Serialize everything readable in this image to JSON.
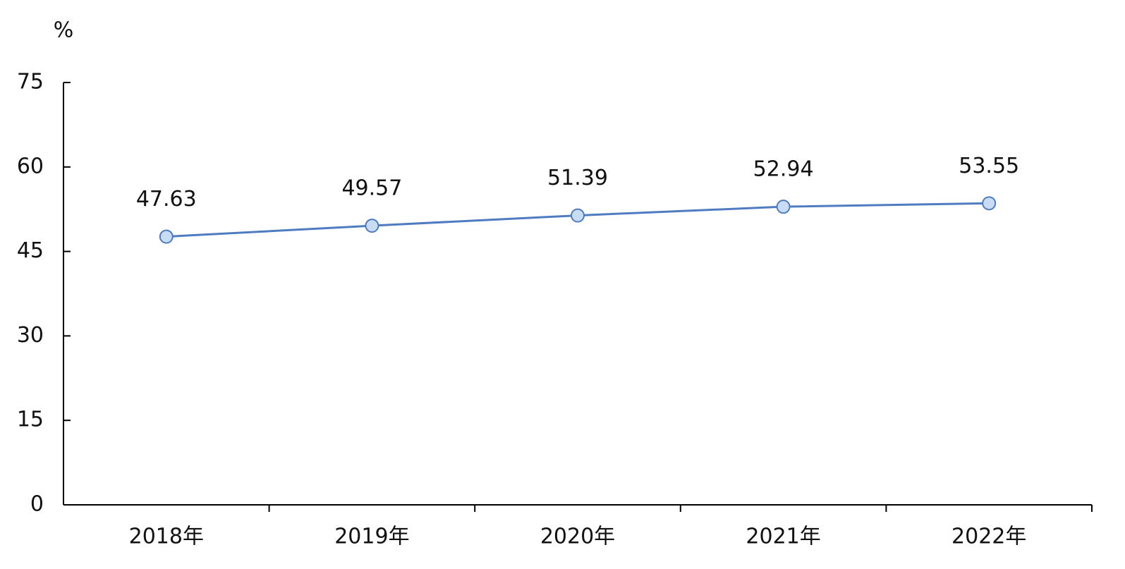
{
  "chart_data": {
    "type": "line",
    "y_label": "%",
    "categories": [
      "2018年",
      "2019年",
      "2020年",
      "2021年",
      "2022年"
    ],
    "values": [
      47.63,
      49.57,
      51.39,
      52.94,
      53.55
    ],
    "color": "#4f7cc0",
    "marker_fill": "#c9dcf5",
    "ylim": [
      0,
      75
    ],
    "yticks": [
      0,
      15,
      30,
      45,
      60,
      75
    ],
    "grid": false,
    "data_labels": true
  }
}
